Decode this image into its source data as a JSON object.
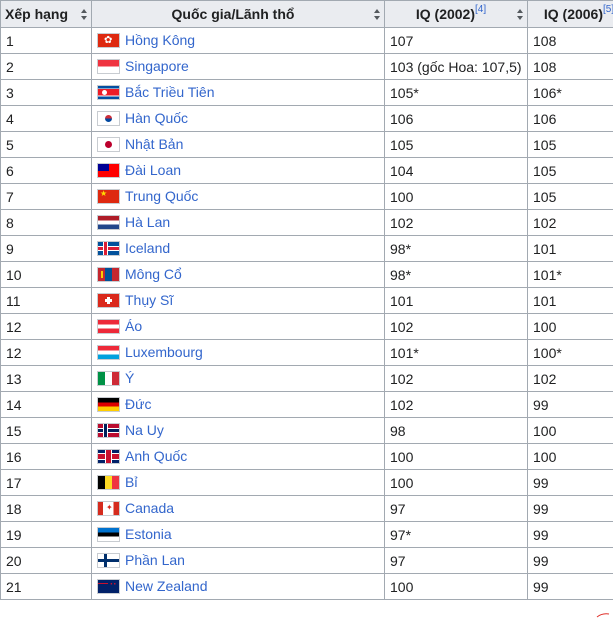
{
  "table": {
    "headers": [
      {
        "label": "Xếp hạng",
        "sup": ""
      },
      {
        "label": "Quốc gia/Lãnh thổ",
        "sup": ""
      },
      {
        "label": "IQ (2002)",
        "sup": "[4]"
      },
      {
        "label": "IQ (2006)",
        "sup": "[5]"
      }
    ],
    "rows": [
      {
        "rank": "1",
        "country": "Hồng Kông",
        "flag": "hk",
        "iq2002": "107",
        "iq2006": "108"
      },
      {
        "rank": "2",
        "country": "Singapore",
        "flag": "sg",
        "iq2002": "103 (gốc Hoa: 107,5)",
        "iq2006": "108"
      },
      {
        "rank": "3",
        "country": "Bắc Triều Tiên",
        "flag": "kp",
        "iq2002": "105*",
        "iq2006": "106*"
      },
      {
        "rank": "4",
        "country": "Hàn Quốc",
        "flag": "kr",
        "iq2002": "106",
        "iq2006": "106"
      },
      {
        "rank": "5",
        "country": "Nhật Bản",
        "flag": "jp",
        "iq2002": "105",
        "iq2006": "105"
      },
      {
        "rank": "6",
        "country": "Đài Loan",
        "flag": "tw",
        "iq2002": "104",
        "iq2006": "105"
      },
      {
        "rank": "7",
        "country": "Trung Quốc",
        "flag": "cn",
        "iq2002": "100",
        "iq2006": "105"
      },
      {
        "rank": "8",
        "country": "Hà Lan",
        "flag": "nl",
        "iq2002": "102",
        "iq2006": "102"
      },
      {
        "rank": "9",
        "country": "Iceland",
        "flag": "is",
        "iq2002": "98*",
        "iq2006": "101"
      },
      {
        "rank": "10",
        "country": "Mông Cổ",
        "flag": "mn",
        "iq2002": "98*",
        "iq2006": "101*"
      },
      {
        "rank": "11",
        "country": "Thụy Sĩ",
        "flag": "ch",
        "iq2002": "101",
        "iq2006": "101"
      },
      {
        "rank": "12",
        "country": "Áo",
        "flag": "at",
        "iq2002": "102",
        "iq2006": "100"
      },
      {
        "rank": "12",
        "country": "Luxembourg",
        "flag": "lu",
        "iq2002": "101*",
        "iq2006": "100*"
      },
      {
        "rank": "13",
        "country": "Ý",
        "flag": "it",
        "iq2002": "102",
        "iq2006": "102"
      },
      {
        "rank": "14",
        "country": "Đức",
        "flag": "de",
        "iq2002": "102",
        "iq2006": "99"
      },
      {
        "rank": "15",
        "country": "Na Uy",
        "flag": "no",
        "iq2002": "98",
        "iq2006": "100"
      },
      {
        "rank": "16",
        "country": "Anh Quốc",
        "flag": "gb",
        "iq2002": "100",
        "iq2006": "100"
      },
      {
        "rank": "17",
        "country": "Bỉ",
        "flag": "be",
        "iq2002": "100",
        "iq2006": "99"
      },
      {
        "rank": "18",
        "country": "Canada",
        "flag": "ca",
        "iq2002": "97",
        "iq2006": "99"
      },
      {
        "rank": "19",
        "country": "Estonia",
        "flag": "ee",
        "iq2002": "97*",
        "iq2006": "99"
      },
      {
        "rank": "20",
        "country": "Phần Lan",
        "flag": "fi",
        "iq2002": "97",
        "iq2006": "99"
      },
      {
        "rank": "21",
        "country": "New Zealand",
        "flag": "nz",
        "iq2002": "100",
        "iq2006": "99"
      }
    ]
  },
  "colors": {
    "header_bg": "#eaecf0",
    "border": "#a2a9b1",
    "link": "#3366cc"
  },
  "icons": {
    "sort": "sort-arrows-icon"
  }
}
